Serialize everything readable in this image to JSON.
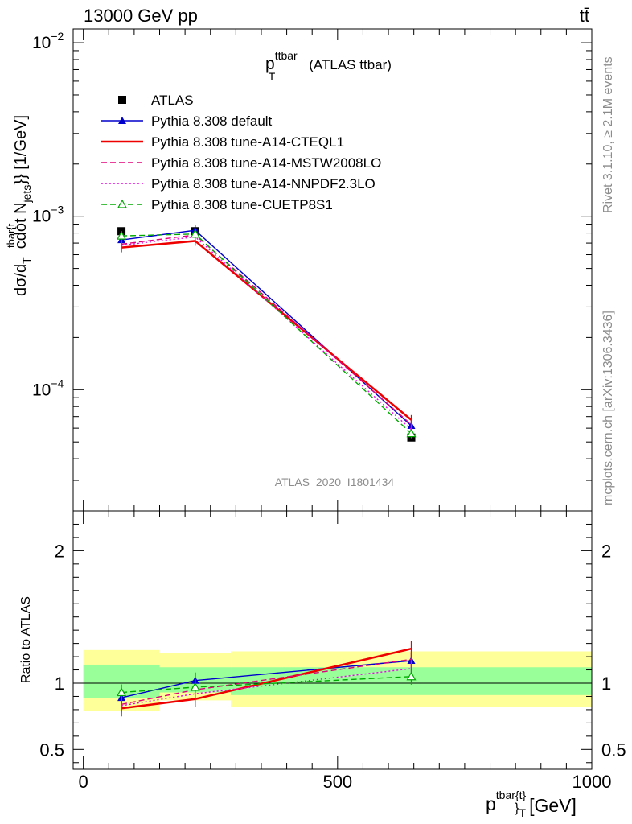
{
  "header": {
    "beam_label": "13000 GeV pp",
    "process_label": "tt̄"
  },
  "side_labels": {
    "rivet": "Rivet 3.1.10, ≥ 2.1M events",
    "mcplots": "mcplots.cern.ch [arXiv:1306.3436]"
  },
  "chart_data": [
    {
      "type": "line",
      "title": "p",
      "title_sup": "ttbar",
      "title_sub": "T",
      "title_suffix": "(ATLAS ttbar)",
      "analysis_label": "ATLAS_2020_I1801434",
      "ylabel": "d¹⁄σ d²σ ... cdot N_jets}} [1/GeV]",
      "ylabel_parts": {
        "main": "dσ/d",
        "cdot": "cdot N",
        "jets": "jets",
        "unit": "}} [1/GeV]",
        "sup": "tbar{t",
        "sub": "T"
      },
      "yscale": "log",
      "ylim": [
        2e-05,
        0.012
      ],
      "xlim": [
        -20,
        1000
      ],
      "ytick_labels": [
        {
          "base": "10",
          "exp": "−2",
          "value": 0.01
        },
        {
          "base": "10",
          "exp": "−3",
          "value": 0.001
        },
        {
          "base": "10",
          "exp": "−4",
          "value": 0.0001
        }
      ],
      "legend_position": "top-left",
      "x": [
        75,
        220,
        645
      ],
      "series": [
        {
          "name": "ATLAS",
          "color": "#000000",
          "style": "marker-square",
          "values": [
            0.00082,
            0.00082,
            5.3e-05
          ]
        },
        {
          "name": "Pythia 8.308 default",
          "color": "#0000cc",
          "style": "solid-triangle",
          "values": [
            0.00073,
            0.00083,
            6.2e-05
          ]
        },
        {
          "name": "Pythia 8.308 tune-A14-CTEQL1",
          "color": "#ee0000",
          "style": "solid-thick",
          "values": [
            0.00066,
            0.00072,
            6.7e-05
          ]
        },
        {
          "name": "Pythia 8.308 tune-A14-MSTW2008LO",
          "color": "#e0007a",
          "style": "dashed",
          "values": [
            0.00069,
            0.00078,
            6.3e-05
          ]
        },
        {
          "name": "Pythia 8.308 tune-A14-NNPDF2.3LO",
          "color": "#ee00ee",
          "style": "dotted",
          "values": [
            0.00068,
            0.00076,
            5.9e-05
          ]
        },
        {
          "name": "Pythia 8.308 tune-CUETP8S1",
          "color": "#00aa00",
          "style": "dashed-open-triangle",
          "values": [
            0.00077,
            0.00079,
            5.6e-05
          ]
        }
      ]
    },
    {
      "type": "line",
      "ylabel": "Ratio to ATLAS",
      "xlabel": "p",
      "xlabel_sup": "tbar{t}",
      "xlabel_sub": "}",
      "xlabel_sub2": "T",
      "xlabel_unit": "[GeV]",
      "xlim": [
        -20,
        1000
      ],
      "ylim": [
        0.35,
        2.3
      ],
      "xticks": [
        0,
        500,
        1000
      ],
      "yticks": [
        0.5,
        1,
        2
      ],
      "ytick_labels": [
        "0.5",
        "1",
        "2"
      ],
      "bands": [
        {
          "x": [
            0,
            150
          ],
          "yellow": [
            0.79,
            1.25
          ],
          "green": [
            0.89,
            1.14
          ]
        },
        {
          "x": [
            150,
            290
          ],
          "yellow": [
            0.87,
            1.23
          ],
          "green": [
            0.93,
            1.12
          ]
        },
        {
          "x": [
            290,
            1000
          ],
          "yellow": [
            0.82,
            1.24
          ],
          "green": [
            0.91,
            1.12
          ]
        }
      ],
      "x": [
        75,
        220,
        645
      ],
      "series": [
        {
          "name": "Pythia 8.308 default",
          "color": "#0000cc",
          "style": "solid-triangle",
          "values": [
            0.89,
            1.02,
            1.17
          ]
        },
        {
          "name": "Pythia 8.308 tune-A14-CTEQL1",
          "color": "#ee0000",
          "style": "solid-thick",
          "values": [
            0.81,
            0.88,
            1.26
          ]
        },
        {
          "name": "Pythia 8.308 tune-A14-MSTW2008LO",
          "color": "#e0007a",
          "style": "dashed",
          "values": [
            0.84,
            0.95,
            1.18
          ]
        },
        {
          "name": "Pythia 8.308 tune-A14-NNPDF2.3LO",
          "color": "#ee00ee",
          "style": "dotted",
          "values": [
            0.83,
            0.92,
            1.11
          ]
        },
        {
          "name": "Pythia 8.308 tune-CUETP8S1",
          "color": "#00aa00",
          "style": "dashed-open-triangle",
          "values": [
            0.93,
            0.97,
            1.05
          ]
        }
      ]
    }
  ]
}
